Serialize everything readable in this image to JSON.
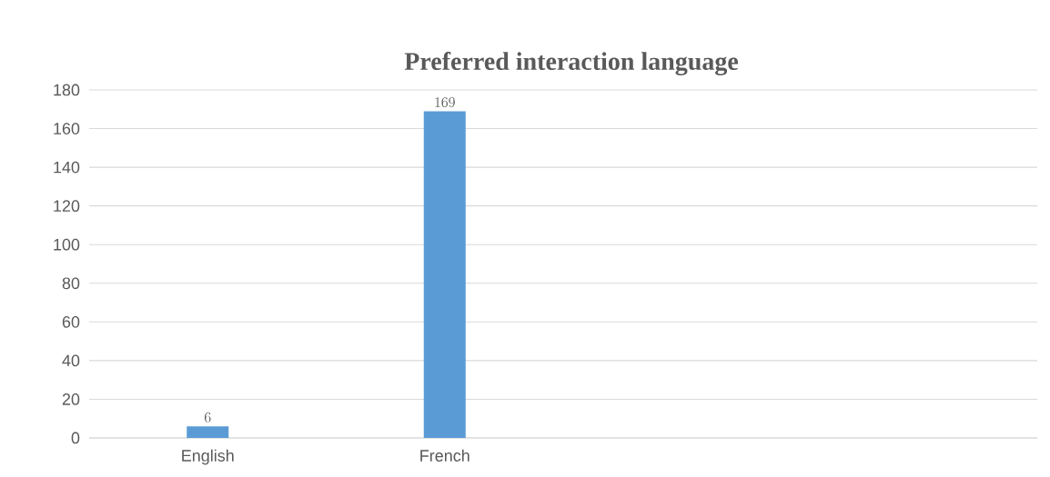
{
  "chart_data": {
    "type": "bar",
    "title": "Preferred interaction language",
    "categories": [
      "English",
      "French",
      null,
      null
    ],
    "values": [
      6,
      169,
      null,
      null
    ],
    "color": "#5b9bd5",
    "ylim": [
      0,
      180
    ],
    "yticks": [
      0,
      20,
      40,
      60,
      80,
      100,
      120,
      140,
      160,
      180
    ],
    "grid": "y",
    "data_labels": true
  }
}
